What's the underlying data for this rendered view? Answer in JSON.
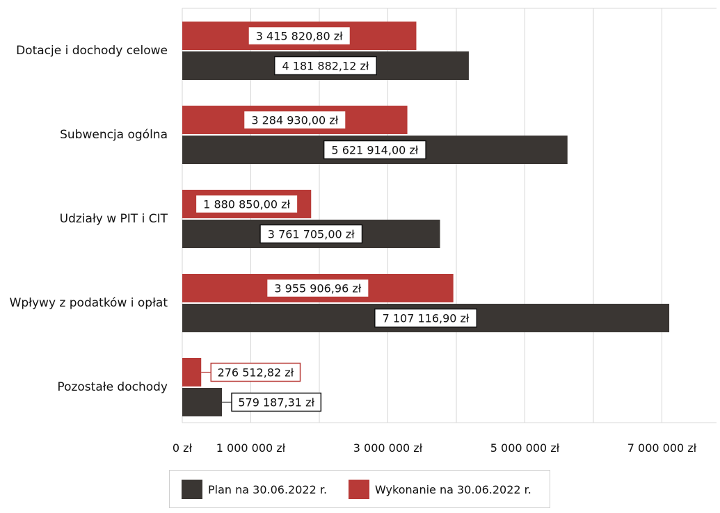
{
  "chart_data": {
    "type": "bar",
    "orientation": "horizontal",
    "categories": [
      "Dotacje i dochody celowe",
      "Subwencja ogólna",
      "Udziały w PIT i CIT",
      "Wpływy z podatków i opłat",
      "Pozostałe dochody"
    ],
    "series": [
      {
        "name": "Wykonanie na 30.06.2022 r.",
        "color": "#b83a37",
        "values": [
          3415820.8,
          3284930.0,
          1880850.0,
          3955906.96,
          276512.82
        ],
        "labels": [
          "3 415 820,80 zł",
          "3 284 930,00 zł",
          "1 880 850,00 zł",
          "3 955 906,96 zł",
          "276 512,82 zł"
        ]
      },
      {
        "name": "Plan na 30.06.2022 r.",
        "color": "#3a3633",
        "values": [
          4181882.12,
          5621914.0,
          3761705.0,
          7107116.9,
          579187.31
        ],
        "labels": [
          "4 181 882,12 zł",
          "5 621 914,00 zł",
          "3 761 705,00 zł",
          "7 107 116,90 zł",
          "579 187,31 zł"
        ]
      }
    ],
    "xlim": [
      0,
      7800000
    ],
    "grid_step": 1000000,
    "xticks": [
      {
        "value": 0,
        "label": "0 zł"
      },
      {
        "value": 1000000,
        "label": "1 000 000 zł"
      },
      {
        "value": 3000000,
        "label": "3 000 000 zł"
      },
      {
        "value": 5000000,
        "label": "5 000 000 zł"
      },
      {
        "value": 7000000,
        "label": "7 000 000 zł"
      }
    ],
    "grid": true,
    "legend_position": "bottom",
    "legend": [
      {
        "label": "Plan na 30.06.2022 r.",
        "color": "#3a3633"
      },
      {
        "label": "Wykonanie na 30.06.2022 r.",
        "color": "#b83a37"
      }
    ],
    "title": "",
    "xlabel": "",
    "ylabel": ""
  }
}
